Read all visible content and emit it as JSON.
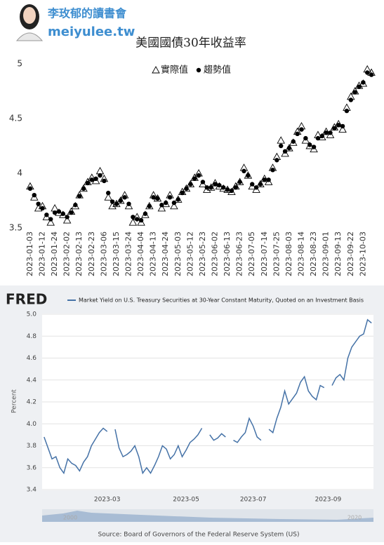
{
  "header": {
    "name": "李玫郁的讀書會",
    "site": "meiyulee.tw"
  },
  "chart_data": [
    {
      "type": "scatter",
      "title": "美國國債30年收益率",
      "grid": false,
      "categories": [
        "2023-01-03",
        null,
        null,
        "2023-01-12",
        null,
        null,
        "2023-01-24",
        null,
        null,
        "2023-02-02",
        null,
        null,
        "2023-02-13",
        null,
        null,
        "2023-02-23",
        null,
        null,
        "2023-03-06",
        null,
        null,
        "2023-03-15",
        null,
        null,
        "2023-03-24",
        null,
        null,
        "2023-04-04",
        null,
        null,
        "2023-04-13",
        null,
        null,
        "2023-04-24",
        null,
        null,
        "2023-05-03",
        null,
        null,
        "2023-05-12",
        null,
        null,
        "2023-05-23",
        null,
        null,
        "2023-06-02",
        null,
        null,
        "2023-06-13",
        null,
        null,
        "2023-06-23",
        null,
        null,
        "2023-07-05",
        null,
        null,
        "2023-07-14",
        null,
        null,
        "2023-07-25",
        null,
        null,
        "2023-08-03",
        null,
        null,
        "2023-08-14",
        null,
        null,
        "2023-08-23",
        null,
        null,
        "2023-09-01",
        null,
        null,
        "2023-09-13",
        null,
        null,
        "2023-09-22",
        null,
        null,
        "2023-10-03",
        null,
        null
      ],
      "series": [
        {
          "name": "實際值",
          "color": "#000000",
          "marker": "triangle-open",
          "values": [
            3.88,
            3.78,
            3.68,
            3.7,
            3.6,
            3.55,
            3.68,
            3.64,
            3.62,
            3.57,
            3.65,
            3.7,
            3.8,
            3.86,
            3.92,
            3.96,
            3.93,
            4.02,
            3.95,
            3.78,
            3.7,
            3.72,
            3.75,
            3.8,
            3.7,
            3.55,
            3.6,
            3.55,
            3.62,
            3.7,
            3.8,
            3.77,
            3.68,
            3.72,
            3.8,
            3.7,
            3.76,
            3.83,
            3.86,
            3.9,
            3.96,
            4.0,
            3.9,
            3.85,
            3.87,
            3.91,
            3.88,
            3.86,
            3.85,
            3.83,
            3.88,
            3.92,
            4.05,
            3.98,
            3.88,
            3.85,
            3.9,
            3.95,
            3.92,
            4.05,
            4.15,
            4.3,
            4.18,
            4.23,
            4.28,
            4.38,
            4.43,
            4.3,
            4.25,
            4.22,
            4.35,
            4.33,
            4.38,
            4.35,
            4.42,
            4.45,
            4.4,
            4.6,
            4.7,
            4.75,
            4.8,
            4.82,
            4.95,
            4.92
          ]
        },
        {
          "name": "趨勢值",
          "color": "#000000",
          "marker": "circle",
          "values": [
            3.86,
            3.8,
            3.72,
            3.68,
            3.62,
            3.58,
            3.64,
            3.65,
            3.63,
            3.6,
            3.64,
            3.71,
            3.79,
            3.86,
            3.91,
            3.94,
            3.95,
            3.98,
            3.93,
            3.82,
            3.74,
            3.72,
            3.75,
            3.78,
            3.72,
            3.6,
            3.58,
            3.57,
            3.63,
            3.7,
            3.78,
            3.77,
            3.71,
            3.73,
            3.78,
            3.73,
            3.76,
            3.82,
            3.86,
            3.9,
            3.95,
            3.98,
            3.92,
            3.87,
            3.87,
            3.9,
            3.89,
            3.87,
            3.85,
            3.84,
            3.87,
            3.92,
            4.02,
            3.98,
            3.9,
            3.87,
            3.9,
            3.94,
            3.94,
            4.03,
            4.12,
            4.25,
            4.2,
            4.23,
            4.29,
            4.36,
            4.4,
            4.32,
            4.26,
            4.24,
            4.32,
            4.34,
            4.37,
            4.37,
            4.41,
            4.44,
            4.43,
            4.57,
            4.67,
            4.74,
            4.79,
            4.83,
            4.92,
            4.9
          ]
        }
      ],
      "ylim": [
        3.5,
        5.0
      ],
      "yticks": [
        3.5,
        4,
        4.5,
        5
      ]
    },
    {
      "type": "line",
      "logo": "FRED",
      "title": "Market Yield on U.S. Treasury Securities at 30-Year Constant Maturity, Quoted on an Investment Basis",
      "y_label": "Percent",
      "source": "Source: Board of Governors of the Federal Reserve System (US)",
      "navigator_labels": [
        "2000",
        "2020"
      ],
      "grid": true,
      "categories": [
        null,
        null,
        null,
        null,
        null,
        null,
        null,
        null,
        null,
        null,
        null,
        null,
        null,
        null,
        null,
        null,
        "2023-03",
        null,
        null,
        null,
        null,
        null,
        null,
        null,
        null,
        null,
        null,
        null,
        null,
        null,
        null,
        null,
        null,
        null,
        null,
        null,
        "2023-05",
        null,
        null,
        null,
        null,
        null,
        null,
        null,
        null,
        null,
        null,
        null,
        null,
        null,
        null,
        null,
        null,
        "2023-07",
        null,
        null,
        null,
        null,
        null,
        null,
        null,
        null,
        null,
        null,
        null,
        null,
        null,
        null,
        null,
        null,
        null,
        null,
        "2023-09",
        null,
        null,
        null,
        null,
        null,
        null,
        null,
        null,
        null,
        null,
        null
      ],
      "series": [
        {
          "name": "Market Yield on U.S. Treasury Securities at 30-Year Constant Maturity, Quoted on an Investment Basis",
          "color": "#4572a7",
          "values": [
            3.88,
            3.78,
            3.68,
            3.7,
            3.6,
            3.55,
            3.68,
            3.64,
            3.62,
            3.57,
            3.65,
            3.7,
            3.8,
            3.86,
            3.92,
            3.96,
            3.93,
            null,
            3.95,
            3.78,
            3.7,
            3.72,
            3.75,
            3.8,
            3.7,
            3.55,
            3.6,
            3.55,
            3.62,
            3.7,
            3.8,
            3.77,
            3.68,
            3.72,
            3.8,
            3.7,
            3.76,
            3.83,
            3.86,
            3.9,
            3.96,
            null,
            3.9,
            3.85,
            3.87,
            3.91,
            3.88,
            null,
            3.85,
            3.83,
            3.88,
            3.92,
            4.05,
            3.98,
            3.88,
            3.85,
            null,
            3.95,
            3.92,
            4.05,
            4.15,
            4.3,
            4.18,
            4.23,
            4.28,
            4.38,
            4.43,
            4.3,
            4.25,
            4.22,
            4.35,
            4.33,
            null,
            4.35,
            4.42,
            4.45,
            4.4,
            4.6,
            4.7,
            4.75,
            4.8,
            4.82,
            4.95,
            4.92
          ]
        }
      ],
      "ylim": [
        3.4,
        5.0
      ],
      "yticks": [
        3.4,
        3.6,
        3.8,
        {
          "value": 4,
          "label": "4.0"
        },
        4.2,
        4.4,
        4.6,
        4.8,
        {
          "value": 5,
          "label": "5.0"
        }
      ]
    }
  ]
}
